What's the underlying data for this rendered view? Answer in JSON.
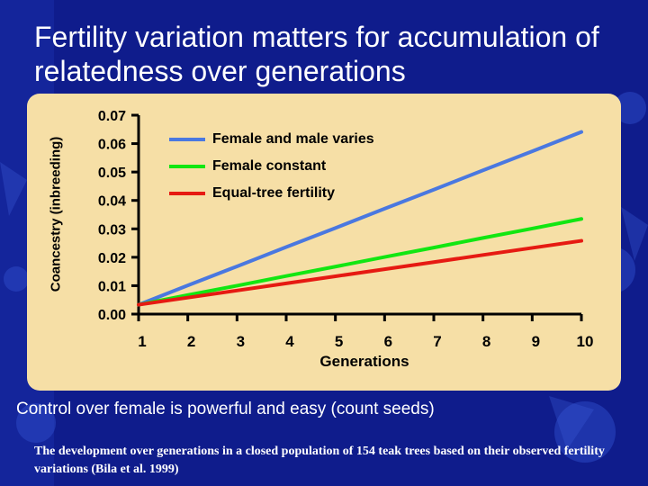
{
  "slide": {
    "title": "Fertility variation matters for accumulation of relatedness over generations",
    "subtitle": "Control over female is powerful and easy (count seeds)",
    "footnote": "The development over generations in a closed population of 154 teak trees based on their observed fertility variations (Bila et al. 1999)"
  },
  "colors": {
    "background": "#0f1c8c",
    "panel": "#f6dfa6",
    "female_and_male": "#4a78e0",
    "female_constant": "#12e612",
    "equal_tree": "#e61a12"
  },
  "chart_data": {
    "type": "line",
    "title": "",
    "xlabel": "Generations",
    "ylabel": "Coancestry (inbreeding)",
    "x": [
      1,
      2,
      3,
      4,
      5,
      6,
      7,
      8,
      9,
      10
    ],
    "xlim": [
      1,
      10
    ],
    "ylim": [
      0.0,
      0.07
    ],
    "x_ticks": [
      "1",
      "2",
      "3",
      "4",
      "5",
      "6",
      "7",
      "8",
      "9",
      "10"
    ],
    "y_ticks": [
      "0.00",
      "0.01",
      "0.02",
      "0.03",
      "0.04",
      "0.05",
      "0.06",
      "0.07"
    ],
    "grid": false,
    "legend_position": "top-left",
    "series": [
      {
        "name": "Female and male varies",
        "values": [
          0.0033,
          0.0101,
          0.0168,
          0.0236,
          0.0303,
          0.0371,
          0.0438,
          0.0506,
          0.0573,
          0.0641
        ],
        "color": "#4a78e0"
      },
      {
        "name": "Female constant",
        "values": [
          0.0033,
          0.0067,
          0.01,
          0.0134,
          0.0167,
          0.0201,
          0.0234,
          0.0268,
          0.0301,
          0.0335
        ],
        "color": "#12e612"
      },
      {
        "name": "Equal-tree fertility",
        "values": [
          0.0033,
          0.0058,
          0.0083,
          0.0108,
          0.0133,
          0.0158,
          0.0183,
          0.0208,
          0.0233,
          0.0258
        ],
        "color": "#e61a12"
      }
    ]
  }
}
